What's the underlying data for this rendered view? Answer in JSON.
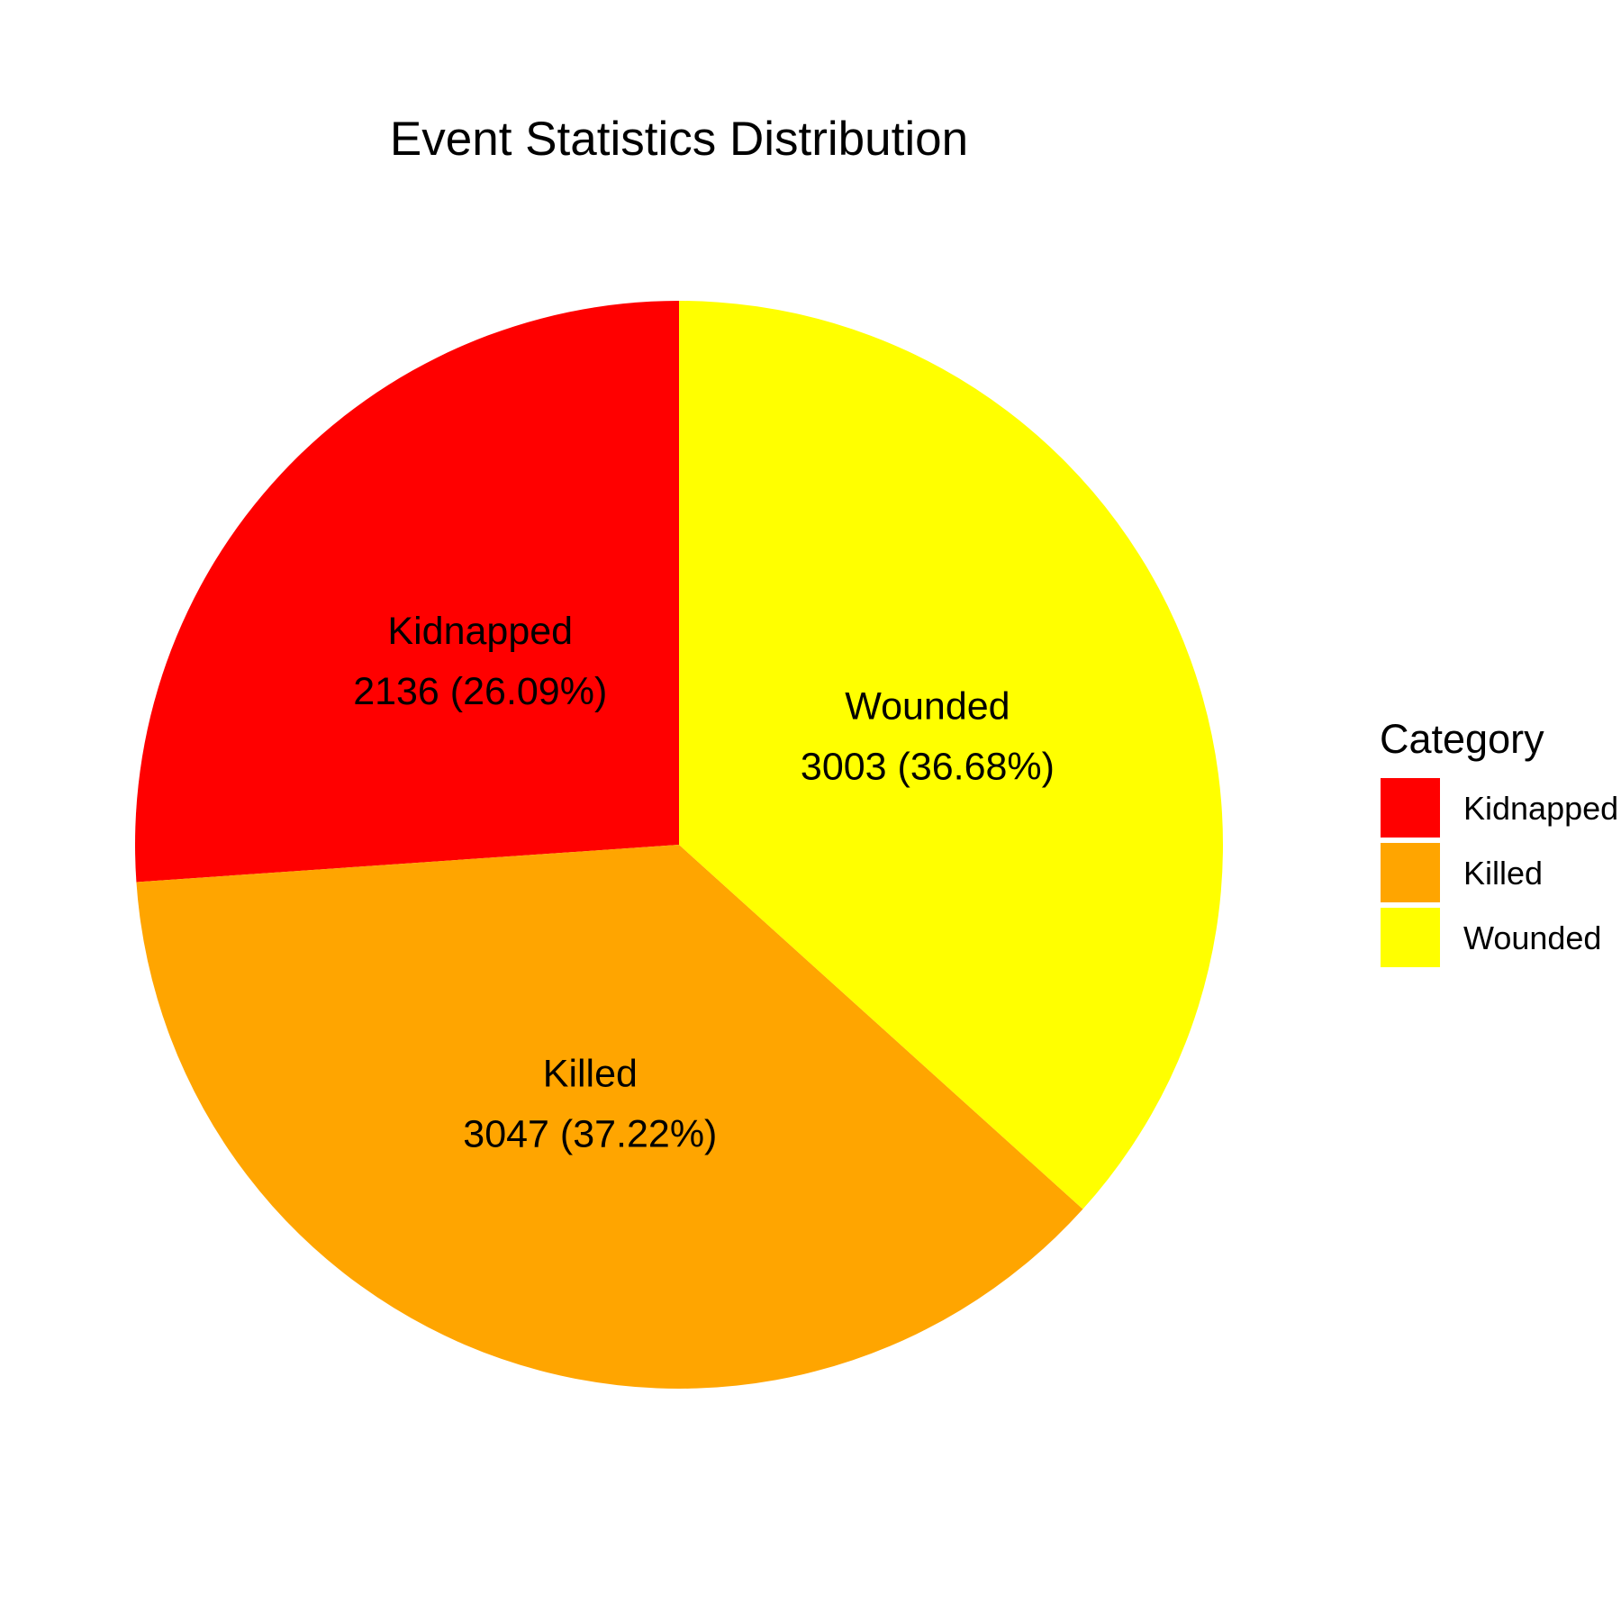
{
  "chart_data": {
    "type": "pie",
    "title": "Event Statistics Distribution",
    "categories": [
      "Kidnapped",
      "Killed",
      "Wounded"
    ],
    "values": [
      2136,
      3047,
      3003
    ],
    "percent_labels": [
      "2136 (26.09%)",
      "3047 (37.22%)",
      "3003 (36.68%)"
    ],
    "colors": [
      "#FF0000",
      "#FFA500",
      "#FFFF00"
    ],
    "start_angle_deg": 0,
    "direction": "counterclockwise",
    "legend": {
      "title": "Category",
      "position": "right"
    }
  }
}
